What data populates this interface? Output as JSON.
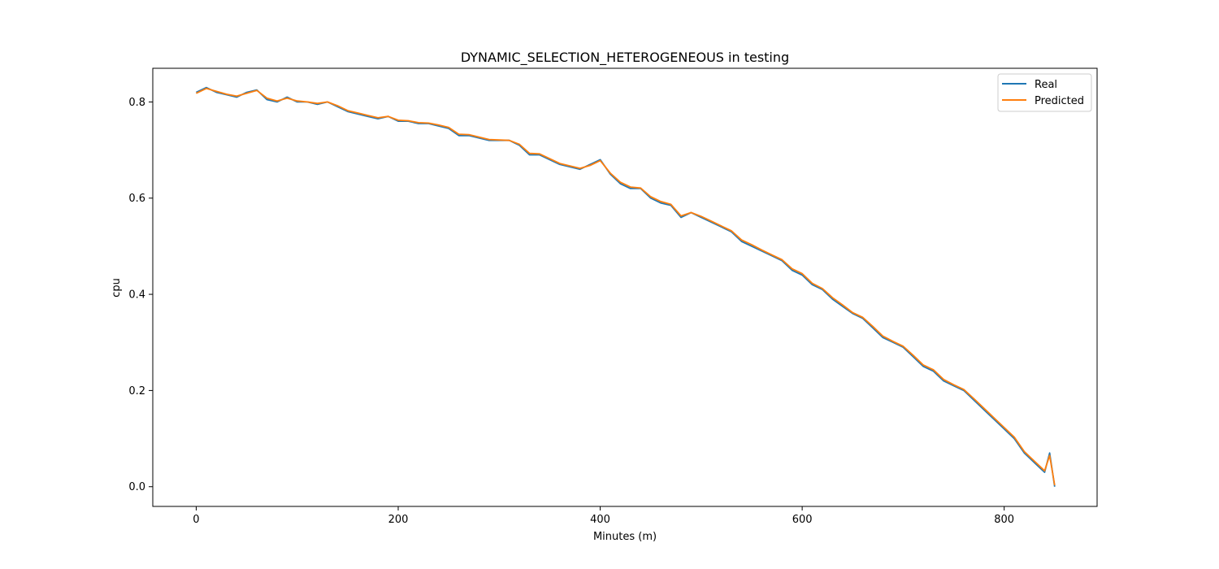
{
  "chart_data": {
    "type": "line",
    "title": "DYNAMIC_SELECTION_HETEROGENEOUS in testing",
    "xlabel": "Minutes (m)",
    "ylabel": "cpu",
    "xlim": [
      -43,
      892
    ],
    "ylim": [
      -0.041,
      0.87
    ],
    "xticks": [
      0,
      200,
      400,
      600,
      800
    ],
    "yticks": [
      0.0,
      0.2,
      0.4,
      0.6,
      0.8
    ],
    "xtick_labels": [
      "0",
      "200",
      "400",
      "600",
      "800"
    ],
    "ytick_labels": [
      "0.0",
      "0.2",
      "0.4",
      "0.6",
      "0.8"
    ],
    "grid": false,
    "legend_position": "top-right",
    "series": [
      {
        "name": "Real",
        "color": "#1f77b4",
        "x": [
          0,
          10,
          20,
          30,
          40,
          50,
          60,
          70,
          80,
          90,
          100,
          110,
          120,
          130,
          140,
          150,
          160,
          170,
          180,
          190,
          200,
          210,
          220,
          230,
          240,
          250,
          260,
          270,
          280,
          290,
          300,
          310,
          320,
          330,
          340,
          350,
          360,
          370,
          380,
          390,
          400,
          410,
          420,
          430,
          440,
          450,
          460,
          470,
          480,
          490,
          500,
          510,
          520,
          530,
          540,
          550,
          560,
          570,
          580,
          590,
          600,
          610,
          620,
          630,
          640,
          650,
          660,
          670,
          680,
          690,
          700,
          710,
          720,
          730,
          740,
          750,
          760,
          770,
          780,
          790,
          800,
          810,
          820,
          830,
          840,
          845,
          850
        ],
        "y": [
          0.82,
          0.83,
          0.82,
          0.815,
          0.81,
          0.82,
          0.825,
          0.805,
          0.8,
          0.81,
          0.8,
          0.8,
          0.795,
          0.8,
          0.79,
          0.78,
          0.775,
          0.77,
          0.765,
          0.77,
          0.76,
          0.76,
          0.755,
          0.755,
          0.75,
          0.745,
          0.73,
          0.73,
          0.725,
          0.72,
          0.72,
          0.72,
          0.71,
          0.69,
          0.69,
          0.68,
          0.67,
          0.665,
          0.66,
          0.67,
          0.68,
          0.65,
          0.63,
          0.62,
          0.62,
          0.6,
          0.59,
          0.585,
          0.56,
          0.57,
          0.56,
          0.55,
          0.54,
          0.53,
          0.51,
          0.5,
          0.49,
          0.48,
          0.47,
          0.45,
          0.44,
          0.42,
          0.41,
          0.39,
          0.375,
          0.36,
          0.35,
          0.33,
          0.31,
          0.3,
          0.29,
          0.27,
          0.25,
          0.24,
          0.22,
          0.21,
          0.2,
          0.18,
          0.16,
          0.14,
          0.12,
          0.1,
          0.07,
          0.05,
          0.03,
          0.07,
          0.0
        ]
      },
      {
        "name": "Predicted",
        "color": "#ff7f0e",
        "x": [
          0,
          10,
          20,
          30,
          40,
          50,
          60,
          70,
          80,
          90,
          100,
          110,
          120,
          130,
          140,
          150,
          160,
          170,
          180,
          190,
          200,
          210,
          220,
          230,
          240,
          250,
          260,
          270,
          280,
          290,
          300,
          310,
          320,
          330,
          340,
          350,
          360,
          370,
          380,
          390,
          400,
          410,
          420,
          430,
          440,
          450,
          460,
          470,
          480,
          490,
          500,
          510,
          520,
          530,
          540,
          550,
          560,
          570,
          580,
          590,
          600,
          610,
          620,
          630,
          640,
          650,
          660,
          670,
          680,
          690,
          700,
          710,
          720,
          730,
          740,
          750,
          760,
          770,
          780,
          790,
          800,
          810,
          820,
          830,
          840,
          845,
          850
        ],
        "y": [
          0.818,
          0.828,
          0.822,
          0.816,
          0.812,
          0.818,
          0.824,
          0.808,
          0.802,
          0.808,
          0.802,
          0.8,
          0.797,
          0.8,
          0.792,
          0.782,
          0.777,
          0.772,
          0.767,
          0.77,
          0.762,
          0.761,
          0.757,
          0.756,
          0.752,
          0.747,
          0.733,
          0.732,
          0.727,
          0.722,
          0.721,
          0.72,
          0.712,
          0.693,
          0.692,
          0.682,
          0.672,
          0.667,
          0.662,
          0.668,
          0.678,
          0.652,
          0.633,
          0.623,
          0.621,
          0.603,
          0.593,
          0.587,
          0.563,
          0.57,
          0.562,
          0.552,
          0.542,
          0.532,
          0.513,
          0.503,
          0.492,
          0.482,
          0.472,
          0.453,
          0.443,
          0.423,
          0.412,
          0.393,
          0.378,
          0.362,
          0.352,
          0.333,
          0.313,
          0.302,
          0.292,
          0.273,
          0.253,
          0.243,
          0.223,
          0.212,
          0.202,
          0.183,
          0.163,
          0.143,
          0.123,
          0.103,
          0.073,
          0.053,
          0.033,
          0.065,
          0.003
        ]
      }
    ]
  }
}
